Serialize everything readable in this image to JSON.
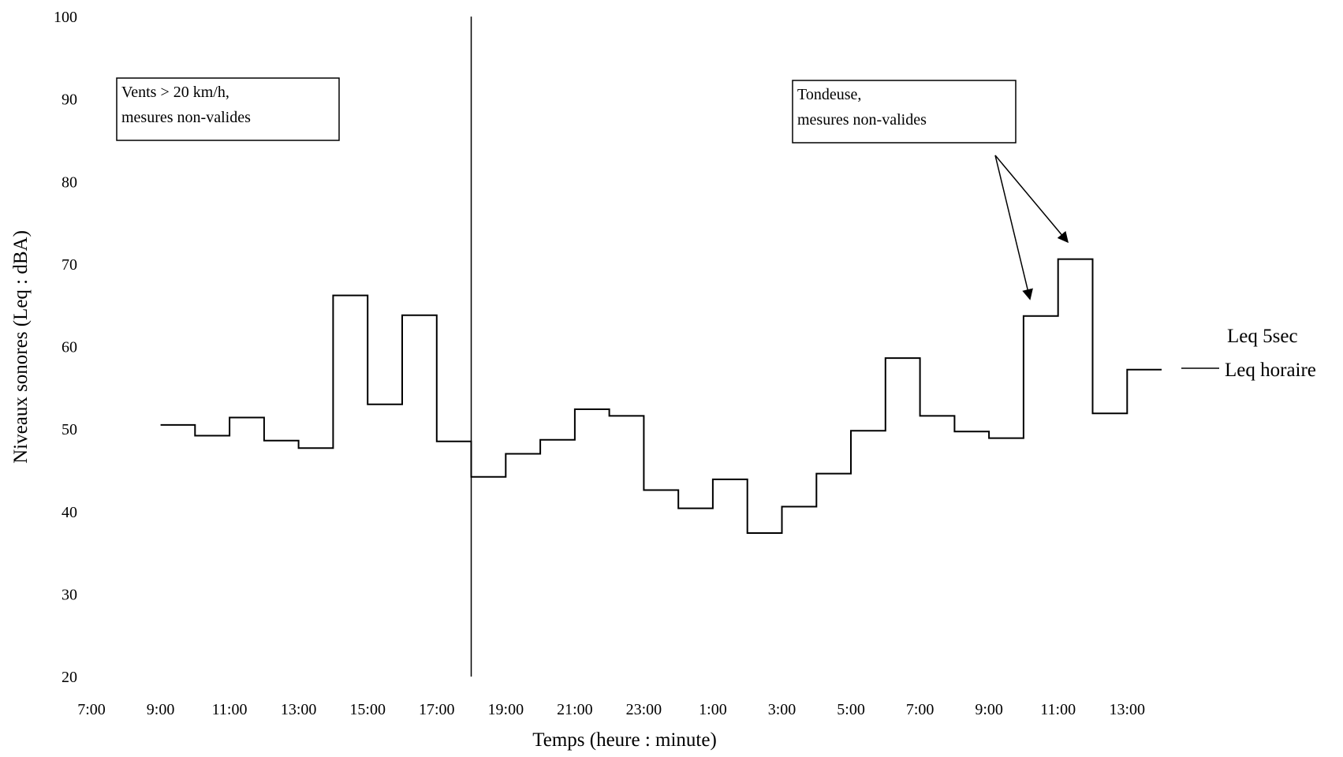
{
  "chart_data": {
    "type": "line",
    "step": true,
    "xlabel": "Temps (heure : minute)",
    "ylabel": "Niveaux sonores (Leq : dBA)",
    "ylim": [
      20,
      100
    ],
    "yticks": [
      20,
      30,
      40,
      50,
      60,
      70,
      80,
      90,
      100
    ],
    "xticks": [
      "7:00",
      "9:00",
      "11:00",
      "13:00",
      "15:00",
      "17:00",
      "19:00",
      "21:00",
      "23:00",
      "1:00",
      "3:00",
      "5:00",
      "7:00",
      "9:00",
      "11:00",
      "13:00"
    ],
    "grid": false,
    "legend_position": "right",
    "legend": [
      "Leq 5sec",
      "Leq horaire"
    ],
    "series": [
      {
        "name": "Leq horaire",
        "hours": [
          "9:00",
          "10:00",
          "11:00",
          "12:00",
          "13:00",
          "14:00",
          "15:00",
          "16:00",
          "17:00",
          "18:00",
          "19:00",
          "20:00",
          "21:00",
          "22:00",
          "23:00",
          "0:00",
          "1:00",
          "2:00",
          "3:00",
          "4:00",
          "5:00",
          "6:00",
          "7:00",
          "8:00",
          "9:00",
          "10:00",
          "11:00",
          "12:00",
          "13:00"
        ],
        "values": [
          50.5,
          49.2,
          51.4,
          48.6,
          47.7,
          66.2,
          53.0,
          63.8,
          48.5,
          44.2,
          47.0,
          48.7,
          52.4,
          51.6,
          42.6,
          40.4,
          43.9,
          37.4,
          40.6,
          44.6,
          49.8,
          58.6,
          51.6,
          49.7,
          48.9,
          63.7,
          70.6,
          51.9,
          57.2
        ]
      }
    ],
    "vline_at": "18:00",
    "annotations": [
      {
        "id": "wind",
        "text": [
          "Vents > 20 km/h,",
          "mesures non-valides"
        ]
      },
      {
        "id": "mower",
        "text": [
          "Tondeuse,",
          "mesures non-valides"
        ],
        "arrows_to": [
          "10:00",
          "11:00"
        ]
      }
    ],
    "colors": {
      "line": "#000000",
      "background": "#ffffff"
    }
  }
}
